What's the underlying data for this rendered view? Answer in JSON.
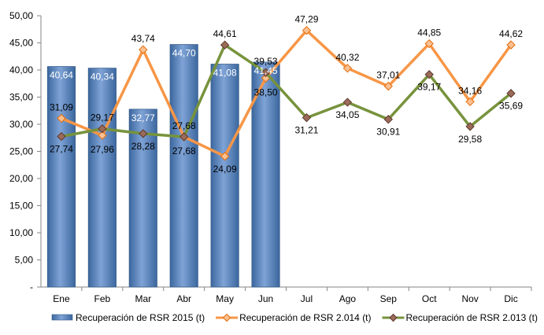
{
  "chart_data": {
    "type": "bar",
    "categories": [
      "Ene",
      "Feb",
      "Mar",
      "Abr",
      "May",
      "Jun",
      "Jul",
      "Ago",
      "Sep",
      "Oct",
      "Nov",
      "Dic"
    ],
    "ylim": [
      0,
      50
    ],
    "yticks": [
      "-",
      "5,00",
      "10,00",
      "15,00",
      "20,00",
      "25,00",
      "30,00",
      "35,00",
      "40,00",
      "45,00",
      "50,00"
    ],
    "grid": false,
    "legend_position": "bottom",
    "series": [
      {
        "name": "Recuperación de RSR 2015 (t)",
        "kind": "bar",
        "color": "#4F81BD",
        "values": [
          40.64,
          40.34,
          32.77,
          44.7,
          41.08,
          41.45,
          null,
          null,
          null,
          null,
          null,
          null
        ],
        "labels": [
          "40,64",
          "40,34",
          "32,77",
          "44,70",
          "41,08",
          "41,45",
          "",
          "",
          "",
          "",
          "",
          ""
        ]
      },
      {
        "name": "Recuperación de RSR 2.014 (t)",
        "kind": "line",
        "color": "#F79646",
        "values": [
          31.09,
          27.96,
          43.74,
          27.68,
          24.09,
          38.5,
          47.29,
          40.32,
          37.01,
          44.85,
          34.16,
          44.62
        ],
        "labels": [
          "31,09",
          "27,96",
          "43,74",
          "27,68",
          "24,09",
          "38,50",
          "47,29",
          "40,32",
          "37,01",
          "44,85",
          "34,16",
          "44,62"
        ]
      },
      {
        "name": "Recuperación de RSR 2.013 (t)",
        "kind": "line",
        "color": "#77933C",
        "values": [
          27.74,
          29.17,
          28.28,
          27.68,
          44.61,
          39.53,
          31.21,
          34.05,
          30.91,
          39.17,
          29.58,
          35.69
        ],
        "labels": [
          "27,74",
          "29,17",
          "28,28",
          "27,68",
          "44,61",
          "39,53",
          "31,21",
          "34,05",
          "30,91",
          "39,17",
          "29,58",
          "35,69"
        ]
      }
    ]
  }
}
